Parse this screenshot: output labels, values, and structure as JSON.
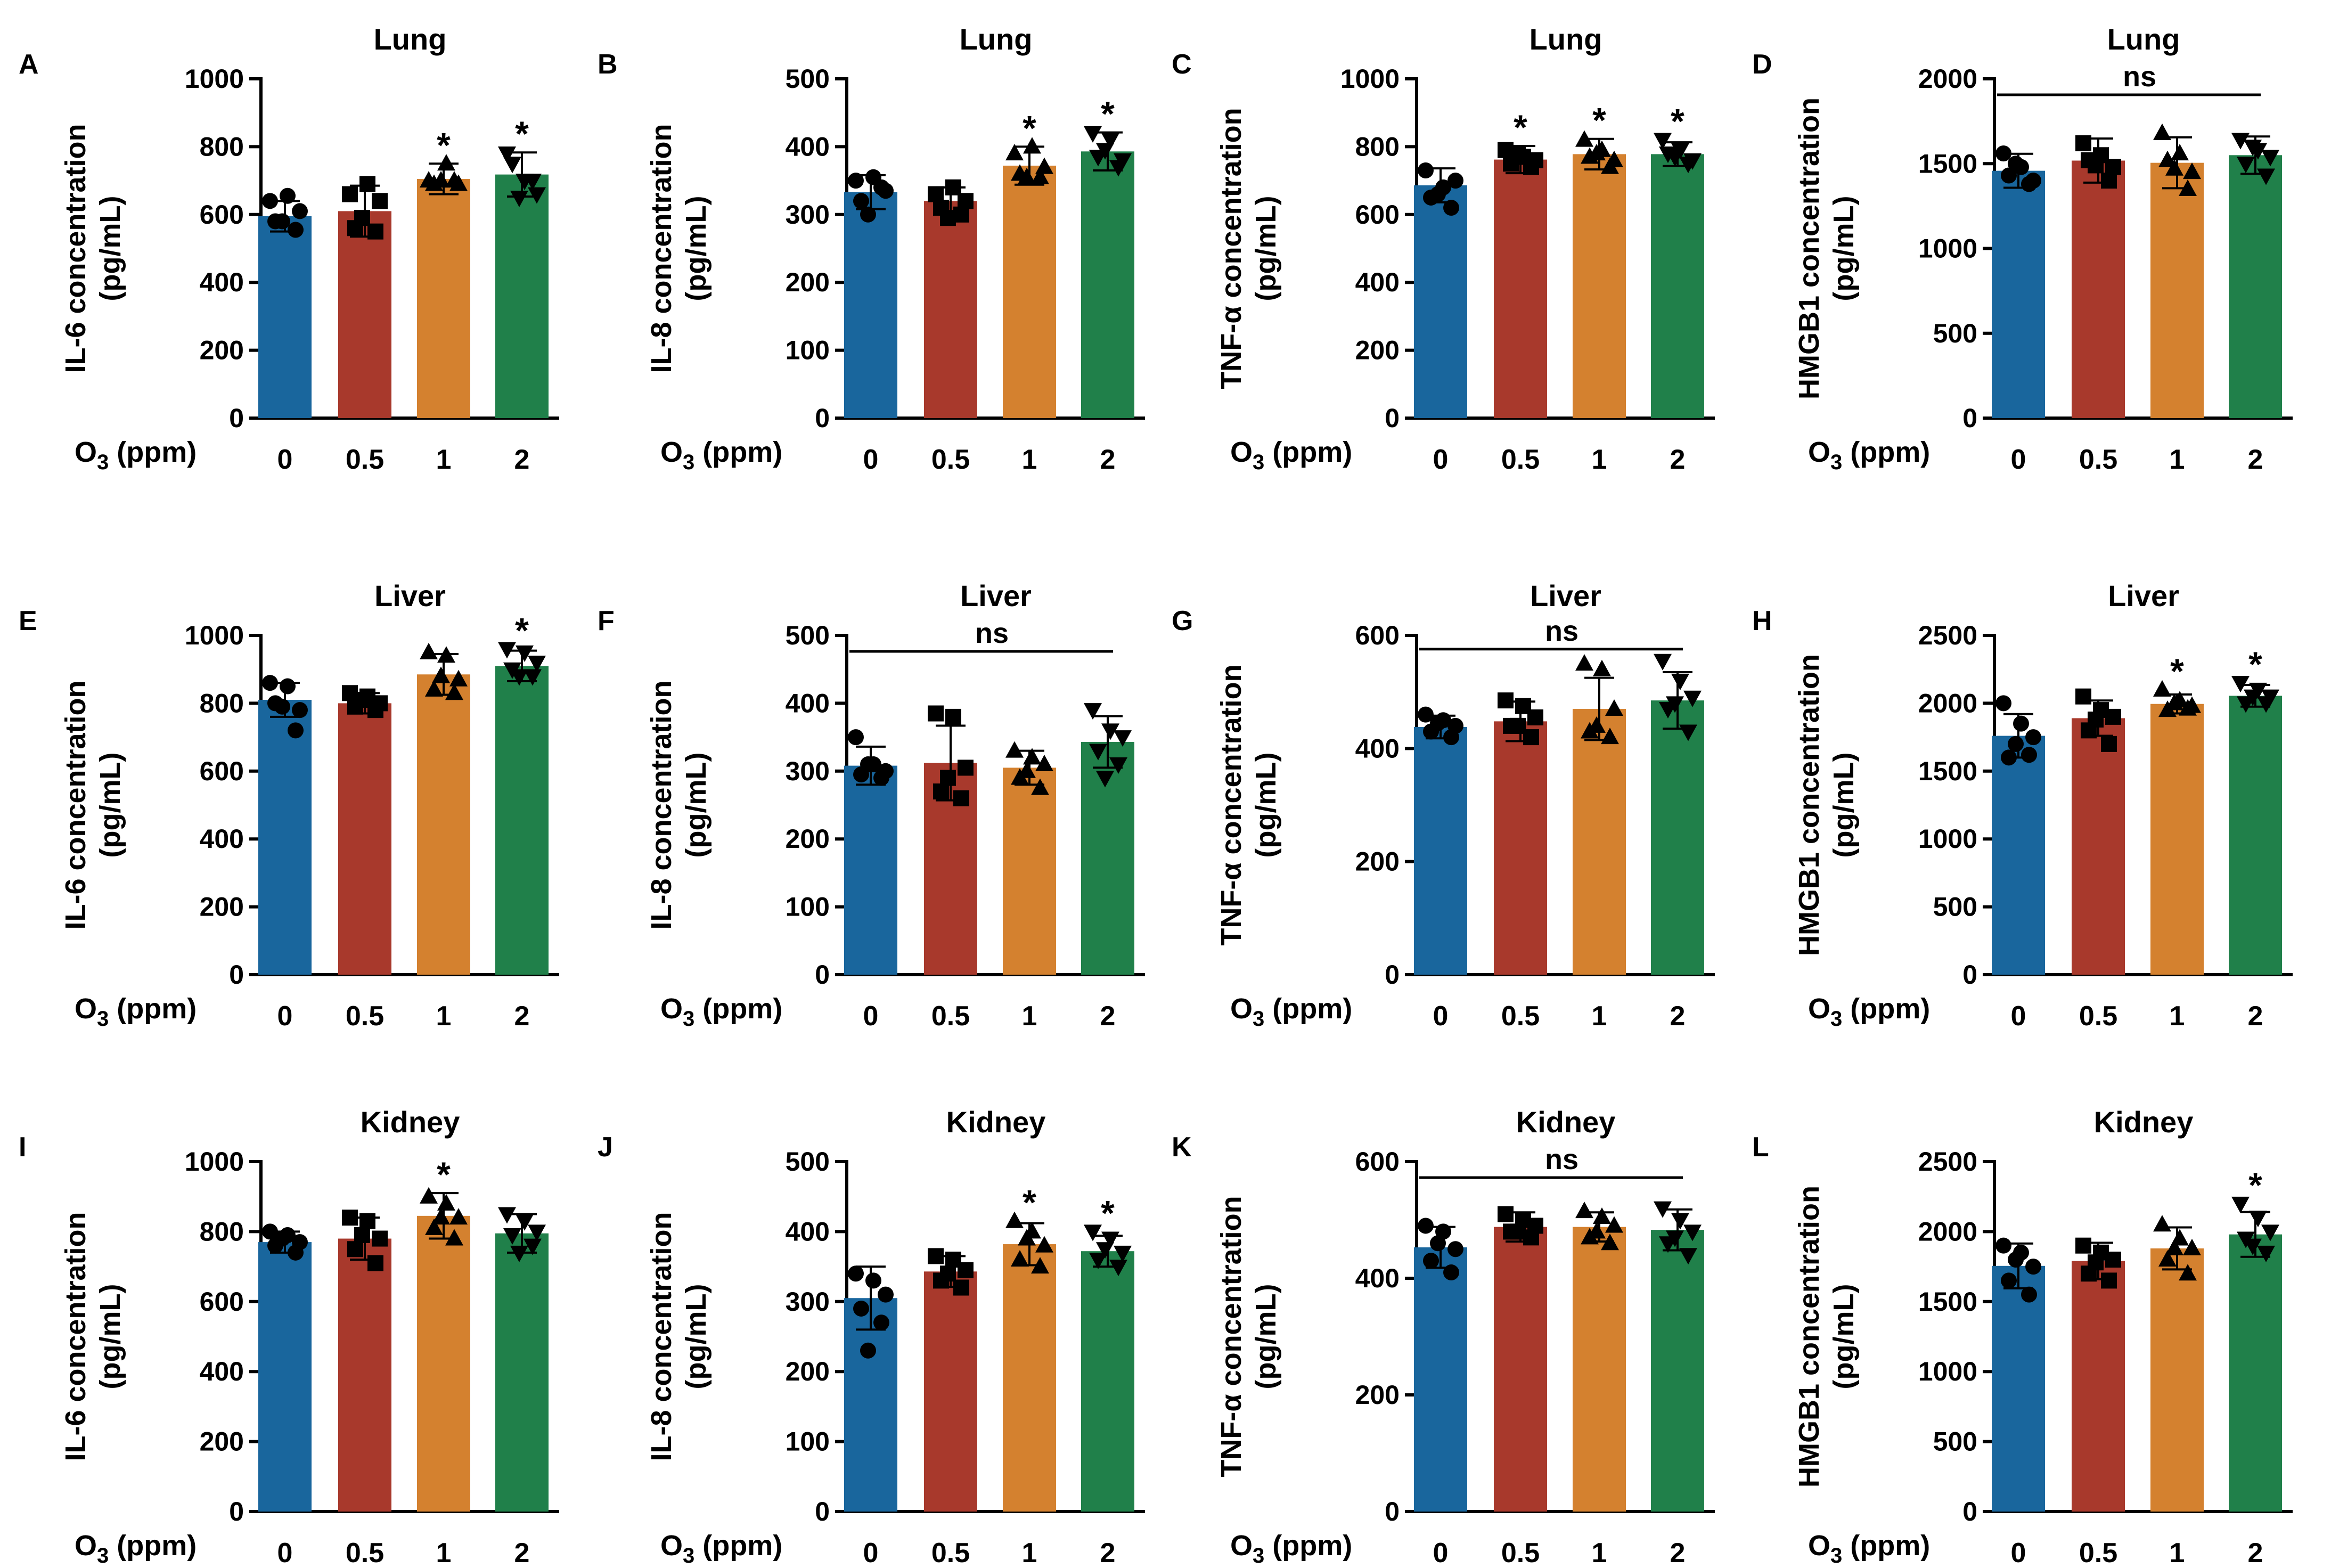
{
  "figure": {
    "x_axis_label": "O",
    "x_axis_label_sub": "3",
    "x_axis_label_unit": " (ppm)",
    "categories": [
      "0",
      "0.5",
      "1",
      "2"
    ],
    "colors": {
      "0": "#19669D",
      "0.5": "#A8392C",
      "1": "#D4812F",
      "2": "#20804A"
    },
    "marker_shapes": [
      "circle",
      "square",
      "triangle-up",
      "triangle-down"
    ]
  },
  "chart_data": [
    {
      "type": "bar",
      "panel": "A",
      "title": "Lung",
      "ylabel": "IL-6 concentration",
      "ylabel_unit": "(pg/mL)",
      "ylim": [
        0,
        1000
      ],
      "yticks": [
        0,
        200,
        400,
        600,
        800,
        1000
      ],
      "categories": [
        "0",
        "0.5",
        "1",
        "2"
      ],
      "values": [
        595,
        610,
        705,
        718
      ],
      "errors": [
        45,
        75,
        45,
        65
      ],
      "points": [
        [
          640,
          655,
          610,
          580,
          555,
          580
        ],
        [
          660,
          690,
          640,
          560,
          550,
          590
        ],
        [
          700,
          750,
          690,
          690,
          700,
          700
        ],
        [
          780,
          700,
          660,
          750,
          700,
          650
        ]
      ],
      "significance": [
        "",
        "",
        "*",
        "*"
      ],
      "ns_line": false
    },
    {
      "type": "bar",
      "panel": "B",
      "title": "Lung",
      "ylabel": "IL-8 concentration",
      "ylabel_unit": "(pg/mL)",
      "ylim": [
        0,
        500
      ],
      "yticks": [
        0,
        100,
        200,
        300,
        400,
        500
      ],
      "categories": [
        "0",
        "0.5",
        "1",
        "2"
      ],
      "values": [
        333,
        320,
        372,
        393
      ],
      "errors": [
        25,
        20,
        28,
        28
      ],
      "points": [
        [
          350,
          355,
          335,
          320,
          340,
          300
        ],
        [
          330,
          340,
          320,
          310,
          300,
          295
        ],
        [
          390,
          400,
          370,
          360,
          355,
          355
        ],
        [
          420,
          410,
          380,
          385,
          370,
          395
        ]
      ],
      "significance": [
        "",
        "",
        "*",
        "*"
      ],
      "ns_line": false
    },
    {
      "type": "bar",
      "panel": "C",
      "title": "Lung",
      "ylabel": "TNF-α concentration",
      "ylabel_unit": "(pg/mL)",
      "ylim": [
        0,
        1000
      ],
      "yticks": [
        0,
        200,
        400,
        600,
        800,
        1000
      ],
      "categories": [
        "0",
        "0.5",
        "1",
        "2"
      ],
      "values": [
        686,
        762,
        778,
        778
      ],
      "errors": [
        50,
        40,
        45,
        35
      ],
      "points": [
        [
          730,
          680,
          700,
          650,
          620,
          660
        ],
        [
          790,
          770,
          760,
          750,
          740,
          780
        ],
        [
          820,
          790,
          760,
          770,
          740,
          780
        ],
        [
          820,
          790,
          760,
          780,
          750,
          770
        ]
      ],
      "significance": [
        "",
        "*",
        "*",
        "*"
      ],
      "ns_line": false
    },
    {
      "type": "bar",
      "panel": "D",
      "title": "Lung",
      "ylabel": "HMGB1 concentration",
      "ylabel_unit": "(pg/mL)",
      "ylim": [
        0,
        2000
      ],
      "yticks": [
        0,
        500,
        1000,
        1500,
        2000
      ],
      "categories": [
        "0",
        "0.5",
        "1",
        "2"
      ],
      "values": [
        1458,
        1518,
        1505,
        1550
      ],
      "errors": [
        100,
        130,
        150,
        110
      ],
      "points": [
        [
          1560,
          1480,
          1400,
          1430,
          1380,
          1500
        ],
        [
          1620,
          1550,
          1480,
          1520,
          1400,
          1490
        ],
        [
          1680,
          1560,
          1450,
          1520,
          1350,
          1470
        ],
        [
          1640,
          1580,
          1540,
          1500,
          1430,
          1600
        ]
      ],
      "significance": [
        "",
        "",
        "",
        ""
      ],
      "ns_line": true,
      "ns_label": "ns"
    },
    {
      "type": "bar",
      "panel": "E",
      "title": "Liver",
      "ylabel": "IL-6 concentration",
      "ylabel_unit": "(pg/mL)",
      "ylim": [
        0,
        1000
      ],
      "yticks": [
        0,
        200,
        400,
        600,
        800,
        1000
      ],
      "categories": [
        "0",
        "0.5",
        "1",
        "2"
      ],
      "values": [
        810,
        800,
        885,
        910
      ],
      "errors": [
        50,
        30,
        60,
        45
      ],
      "points": [
        [
          860,
          850,
          780,
          800,
          720,
          790
        ],
        [
          830,
          820,
          800,
          790,
          780,
          810
        ],
        [
          950,
          940,
          870,
          840,
          830,
          880
        ],
        [
          960,
          950,
          920,
          900,
          880,
          880
        ]
      ],
      "significance": [
        "",
        "",
        "",
        "*"
      ],
      "ns_line": false
    },
    {
      "type": "bar",
      "panel": "F",
      "title": "Liver",
      "ylabel": "IL-8 concentration",
      "ylabel_unit": "(pg/mL)",
      "ylim": [
        0,
        500
      ],
      "yticks": [
        0,
        100,
        200,
        300,
        400,
        500
      ],
      "categories": [
        "0",
        "0.5",
        "1",
        "2"
      ],
      "values": [
        308,
        312,
        305,
        343
      ],
      "errors": [
        28,
        55,
        25,
        38
      ],
      "points": [
        [
          350,
          310,
          300,
          295,
          290,
          310
        ],
        [
          385,
          380,
          305,
          270,
          260,
          290
        ],
        [
          330,
          320,
          310,
          290,
          275,
          300
        ],
        [
          390,
          360,
          350,
          330,
          310,
          290
        ]
      ],
      "significance": [
        "",
        "",
        "",
        ""
      ],
      "ns_line": true,
      "ns_label": "ns"
    },
    {
      "type": "bar",
      "panel": "G",
      "title": "Liver",
      "ylabel": "TNF-α concentration",
      "ylabel_unit": "(pg/mL)",
      "ylim": [
        0,
        600
      ],
      "yticks": [
        0,
        200,
        400,
        600
      ],
      "categories": [
        "0",
        "0.5",
        "1",
        "2"
      ],
      "values": [
        438,
        448,
        470,
        485
      ],
      "errors": [
        20,
        35,
        55,
        50
      ],
      "points": [
        [
          460,
          450,
          440,
          430,
          420,
          445
        ],
        [
          485,
          475,
          455,
          440,
          420,
          440
        ],
        [
          550,
          540,
          470,
          430,
          420,
          440
        ],
        [
          555,
          520,
          490,
          470,
          430,
          480
        ]
      ],
      "significance": [
        "",
        "",
        "",
        ""
      ],
      "ns_line": true,
      "ns_label": "ns"
    },
    {
      "type": "bar",
      "panel": "H",
      "title": "Liver",
      "ylabel": "HMGB1 concentration",
      "ylabel_unit": "(pg/mL)",
      "ylim": [
        0,
        2500
      ],
      "yticks": [
        0,
        500,
        1000,
        1500,
        2000,
        2500
      ],
      "categories": [
        "0",
        "0.5",
        "1",
        "2"
      ],
      "values": [
        1760,
        1890,
        1995,
        2055
      ],
      "errors": [
        160,
        130,
        70,
        80
      ],
      "points": [
        [
          2000,
          1850,
          1750,
          1600,
          1620,
          1700
        ],
        [
          2050,
          1950,
          1900,
          1800,
          1700,
          1880
        ],
        [
          2100,
          2020,
          1980,
          1950,
          1960,
          2000
        ],
        [
          2150,
          2100,
          2050,
          2000,
          2000,
          2050
        ]
      ],
      "significance": [
        "",
        "",
        "*",
        "*"
      ],
      "ns_line": false
    },
    {
      "type": "bar",
      "panel": "I",
      "title": "Kidney",
      "ylabel": "IL-6 concentration",
      "ylabel_unit": "(pg/mL)",
      "ylim": [
        0,
        1000
      ],
      "yticks": [
        0,
        200,
        400,
        600,
        800,
        1000
      ],
      "categories": [
        "0",
        "0.5",
        "1",
        "2"
      ],
      "values": [
        770,
        780,
        845,
        795
      ],
      "errors": [
        30,
        60,
        65,
        55
      ],
      "points": [
        [
          800,
          790,
          770,
          760,
          740,
          780
        ],
        [
          840,
          830,
          780,
          750,
          710,
          790
        ],
        [
          900,
          880,
          840,
          810,
          780,
          840
        ],
        [
          850,
          830,
          800,
          790,
          760,
          740
        ]
      ],
      "significance": [
        "",
        "",
        "*",
        ""
      ],
      "ns_line": false
    },
    {
      "type": "bar",
      "panel": "J",
      "title": "Kidney",
      "ylabel": "IL-8 concentration",
      "ylabel_unit": "(pg/mL)",
      "ylim": [
        0,
        500
      ],
      "yticks": [
        0,
        100,
        200,
        300,
        400,
        500
      ],
      "categories": [
        "0",
        "0.5",
        "1",
        "2"
      ],
      "values": [
        305,
        343,
        382,
        372
      ],
      "errors": [
        45,
        22,
        30,
        22
      ],
      "points": [
        [
          340,
          330,
          310,
          290,
          270,
          230
        ],
        [
          365,
          360,
          345,
          330,
          320,
          340
        ],
        [
          415,
          400,
          380,
          360,
          350,
          390
        ],
        [
          400,
          390,
          370,
          360,
          350,
          375
        ]
      ],
      "significance": [
        "",
        "",
        "*",
        "*"
      ],
      "ns_line": false
    },
    {
      "type": "bar",
      "panel": "K",
      "title": "Kidney",
      "ylabel": "TNF-α concentration",
      "ylabel_unit": "(pg/mL)",
      "ylim": [
        0,
        600
      ],
      "yticks": [
        0,
        200,
        400,
        600
      ],
      "categories": [
        "0",
        "0.5",
        "1",
        "2"
      ],
      "values": [
        453,
        488,
        488,
        483
      ],
      "errors": [
        35,
        25,
        25,
        35
      ],
      "points": [
        [
          490,
          480,
          450,
          430,
          410,
          460
        ],
        [
          510,
          500,
          490,
          480,
          470,
          480
        ],
        [
          515,
          505,
          490,
          470,
          460,
          480
        ],
        [
          520,
          500,
          480,
          460,
          440,
          470
        ]
      ],
      "significance": [
        "",
        "",
        "",
        ""
      ],
      "ns_line": true,
      "ns_label": "ns"
    },
    {
      "type": "bar",
      "panel": "L",
      "title": "Kidney",
      "ylabel": "HMGB1 concentration",
      "ylabel_unit": "(pg/mL)",
      "ylim": [
        0,
        2500
      ],
      "yticks": [
        0,
        500,
        1000,
        1500,
        2000,
        2500
      ],
      "categories": [
        "0",
        "0.5",
        "1",
        "2"
      ],
      "values": [
        1755,
        1790,
        1880,
        1980
      ],
      "errors": [
        160,
        130,
        150,
        160
      ],
      "points": [
        [
          1900,
          1850,
          1750,
          1650,
          1550,
          1800
        ],
        [
          1900,
          1850,
          1800,
          1700,
          1650,
          1780
        ],
        [
          2050,
          1950,
          1880,
          1800,
          1700,
          1880
        ],
        [
          2200,
          2100,
          2000,
          1950,
          1850,
          1900
        ]
      ],
      "significance": [
        "",
        "",
        "",
        "*"
      ],
      "ns_line": false
    }
  ]
}
